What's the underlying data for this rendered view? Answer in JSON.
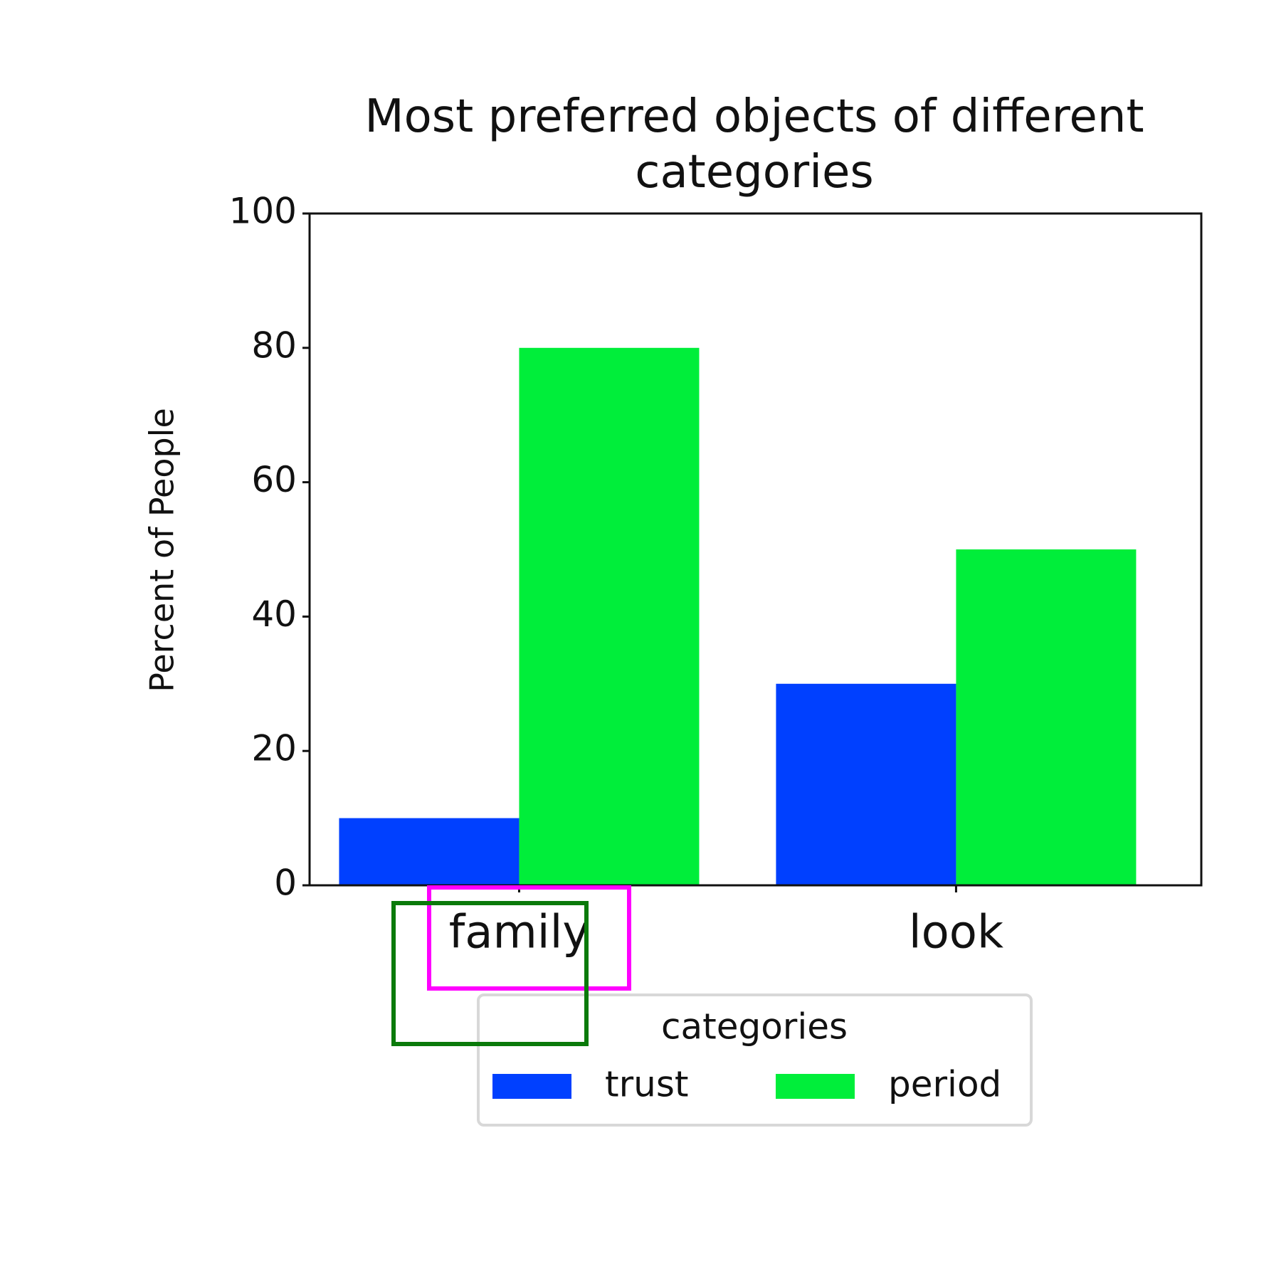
{
  "chart_data": {
    "type": "bar",
    "title": "Most preferred objects of different categories",
    "y_label": "Percent of People",
    "categories": [
      "family",
      "look"
    ],
    "series": [
      {
        "name": "trust",
        "color": "#0040ff",
        "values": [
          10,
          30
        ]
      },
      {
        "name": "period",
        "color": "#00ee3a",
        "values": [
          80,
          50
        ]
      }
    ],
    "legend_title": "categories",
    "legend": "lower center",
    "ylim": [
      0,
      100
    ],
    "yticks": [
      0,
      20,
      40,
      60,
      80,
      100
    ],
    "grid": false
  }
}
